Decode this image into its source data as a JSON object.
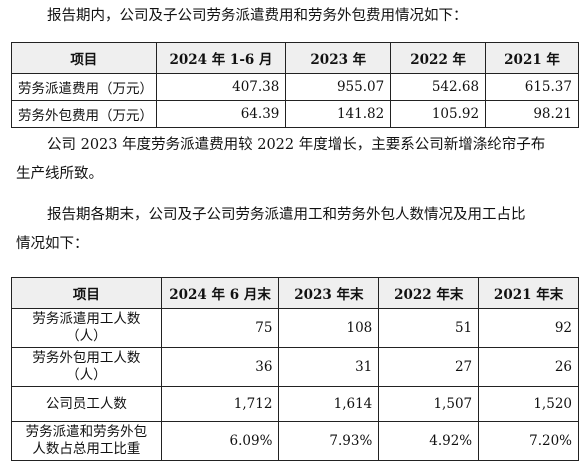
{
  "intro1": "报告期内，公司及子公司劳务派遣费用和劳务外包费用情况如下：",
  "table1": {
    "headers": [
      "项目",
      "2024 年 1-6 月",
      "2023 年",
      "2022 年",
      "2021 年"
    ],
    "rows": [
      {
        "label": "劳务派遣费用（万元）",
        "values": [
          "407.38",
          "955.07",
          "542.68",
          "615.37"
        ]
      },
      {
        "label": "劳务外包费用（万元）",
        "values": [
          "64.39",
          "141.82",
          "105.92",
          "98.21"
        ]
      }
    ]
  },
  "para2_line1": "公司 2023 年度劳务派遣费用较 2022 年度增长，主要系公司新增涤纶帘子布",
  "para2_line2": "生产线所致。",
  "para3_line1": "报告期各期末，公司及子公司劳务派遣用工和劳务外包人数情况及用工占比",
  "para3_line2": "情况如下：",
  "table2": {
    "headers": [
      "项目",
      "2024 年 6 月末",
      "2023 年末",
      "2022 年末",
      "2021 年末"
    ],
    "rows": [
      {
        "label_l1": "劳务派遣用工人数",
        "label_l2": "（人）",
        "values": [
          "75",
          "108",
          "51",
          "92"
        ]
      },
      {
        "label_l1": "劳务外包用工人数",
        "label_l2": "（人）",
        "values": [
          "36",
          "31",
          "27",
          "26"
        ]
      },
      {
        "label_l1": "公司员工人数",
        "label_l2": "",
        "values": [
          "1,712",
          "1,614",
          "1,507",
          "1,520"
        ]
      },
      {
        "label_l1": "劳务派遣和劳务外包",
        "label_l2": "人数占总用工比重",
        "values": [
          "6.09%",
          "7.93%",
          "4.92%",
          "7.20%"
        ]
      }
    ]
  }
}
